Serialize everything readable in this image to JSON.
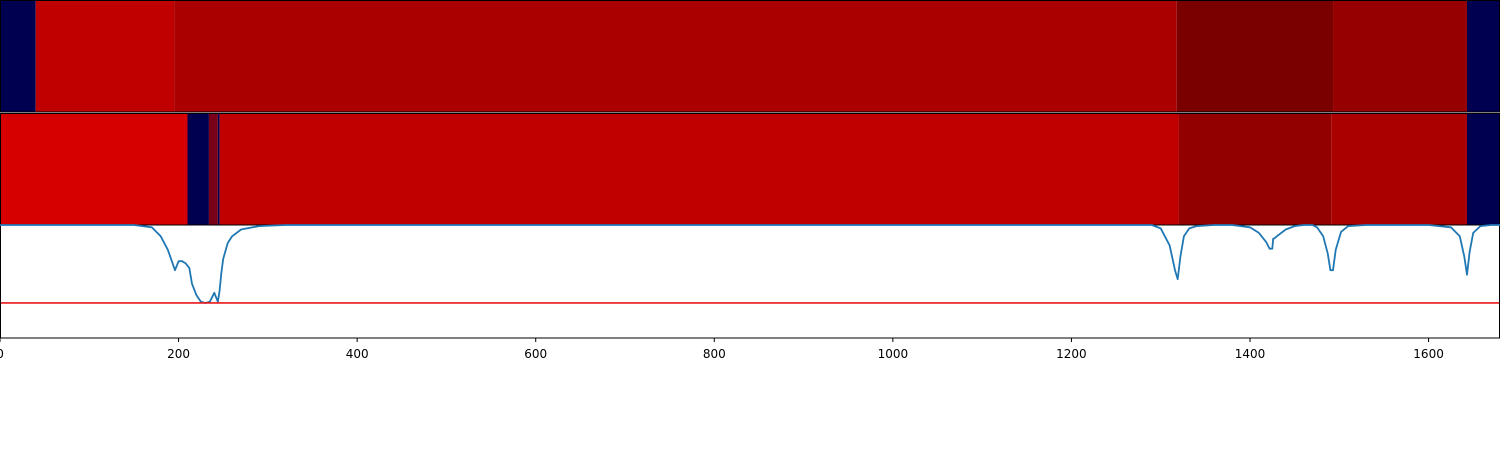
{
  "chart_data": {
    "type": "heatmap",
    "title": "",
    "xlabel": "",
    "ylabel": "",
    "xlim": [
      0,
      1680
    ],
    "grid": false,
    "legend": "none",
    "x_ticks": [
      0,
      200,
      400,
      600,
      800,
      1000,
      1200,
      1400,
      1600
    ],
    "bands": [
      {
        "segments": [
          {
            "x0": 0,
            "x1": 40,
            "color": "#000050"
          },
          {
            "x0": 40,
            "x1": 195,
            "color": "#c00000"
          },
          {
            "x0": 195,
            "x1": 1318,
            "color": "#aa0000"
          },
          {
            "x0": 1318,
            "x1": 1493,
            "color": "#7a0000"
          },
          {
            "x0": 1493,
            "x1": 1643,
            "color": "#960000"
          },
          {
            "x0": 1643,
            "x1": 1680,
            "color": "#000050"
          }
        ]
      },
      {
        "segments": [
          {
            "x0": 0,
            "x1": 210,
            "color": "#d60000"
          },
          {
            "x0": 210,
            "x1": 234,
            "color": "#000050"
          },
          {
            "x0": 234,
            "x1": 244,
            "color": "#780018"
          },
          {
            "x0": 244,
            "x1": 246,
            "color": "#000050"
          },
          {
            "x0": 246,
            "x1": 1320,
            "color": "#c00000"
          },
          {
            "x0": 1320,
            "x1": 1491,
            "color": "#930000"
          },
          {
            "x0": 1491,
            "x1": 1643,
            "color": "#aa0000"
          },
          {
            "x0": 1643,
            "x1": 1680,
            "color": "#000050"
          }
        ]
      }
    ],
    "line_panel": {
      "ylim": [
        0,
        1
      ],
      "threshold": {
        "value": 0.31,
        "color": "#e8161b"
      },
      "series": [
        {
          "color": "#1f77b4",
          "x": [
            0,
            150,
            170,
            180,
            188,
            196,
            200,
            204,
            208,
            212,
            215,
            220,
            225,
            230,
            235,
            240,
            242,
            244,
            246,
            248,
            250,
            255,
            260,
            270,
            290,
            320,
            1100,
            1290,
            1300,
            1310,
            1316,
            1319,
            1322,
            1326,
            1332,
            1340,
            1360,
            1380,
            1400,
            1410,
            1418,
            1422,
            1425,
            1426,
            1427,
            1430,
            1440,
            1450,
            1460,
            1470,
            1475,
            1482,
            1487,
            1490,
            1493,
            1496,
            1502,
            1510,
            1530,
            1600,
            1625,
            1635,
            1640,
            1643,
            1646,
            1650,
            1658,
            1670,
            1680
          ],
          "y": [
            1,
            1,
            0.98,
            0.9,
            0.78,
            0.6,
            0.68,
            0.68,
            0.66,
            0.62,
            0.48,
            0.38,
            0.32,
            0.31,
            0.32,
            0.4,
            0.36,
            0.32,
            0.42,
            0.58,
            0.7,
            0.84,
            0.9,
            0.96,
            0.99,
            1,
            1,
            1,
            0.97,
            0.82,
            0.6,
            0.52,
            0.72,
            0.9,
            0.97,
            0.99,
            1,
            1,
            0.98,
            0.93,
            0.85,
            0.79,
            0.79,
            0.88,
            0.88,
            0.9,
            0.96,
            0.99,
            1,
            1,
            0.98,
            0.9,
            0.75,
            0.6,
            0.6,
            0.78,
            0.94,
            0.99,
            1,
            1,
            0.98,
            0.9,
            0.72,
            0.56,
            0.76,
            0.93,
            0.99,
            1,
            1
          ]
        }
      ]
    }
  }
}
